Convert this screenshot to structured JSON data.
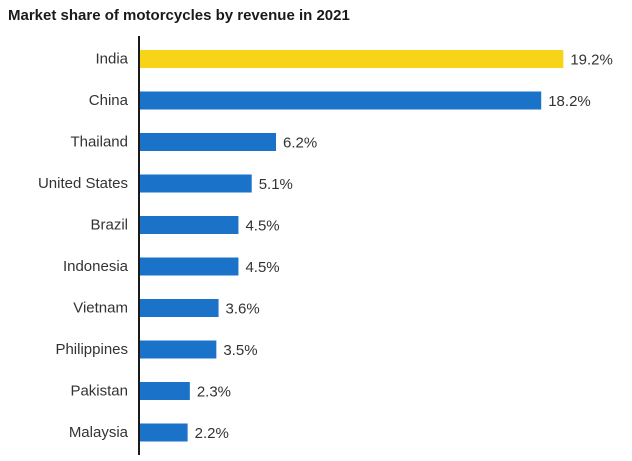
{
  "chart_data": {
    "type": "bar",
    "orientation": "horizontal",
    "title": "Market share of motorcycles by revenue in 2021",
    "xlabel": "",
    "ylabel": "",
    "unit": "%",
    "xlim": [
      0,
      20
    ],
    "grid": false,
    "categories": [
      "India",
      "China",
      "Thailand",
      "United States",
      "Brazil",
      "Indonesia",
      "Vietnam",
      "Philippines",
      "Pakistan",
      "Malaysia"
    ],
    "values": [
      19.2,
      18.2,
      6.2,
      5.1,
      4.5,
      4.5,
      3.6,
      3.5,
      2.3,
      2.2
    ],
    "value_labels": [
      "19.2%",
      "18.2%",
      "6.2%",
      "5.1%",
      "4.5%",
      "4.5%",
      "3.6%",
      "3.5%",
      "2.3%",
      "2.2%"
    ],
    "highlight_index": 0,
    "colors": {
      "bar": "#1a73c9",
      "highlight": "#f7d417",
      "axis": "#1a1a1a",
      "text": "#333333"
    }
  }
}
